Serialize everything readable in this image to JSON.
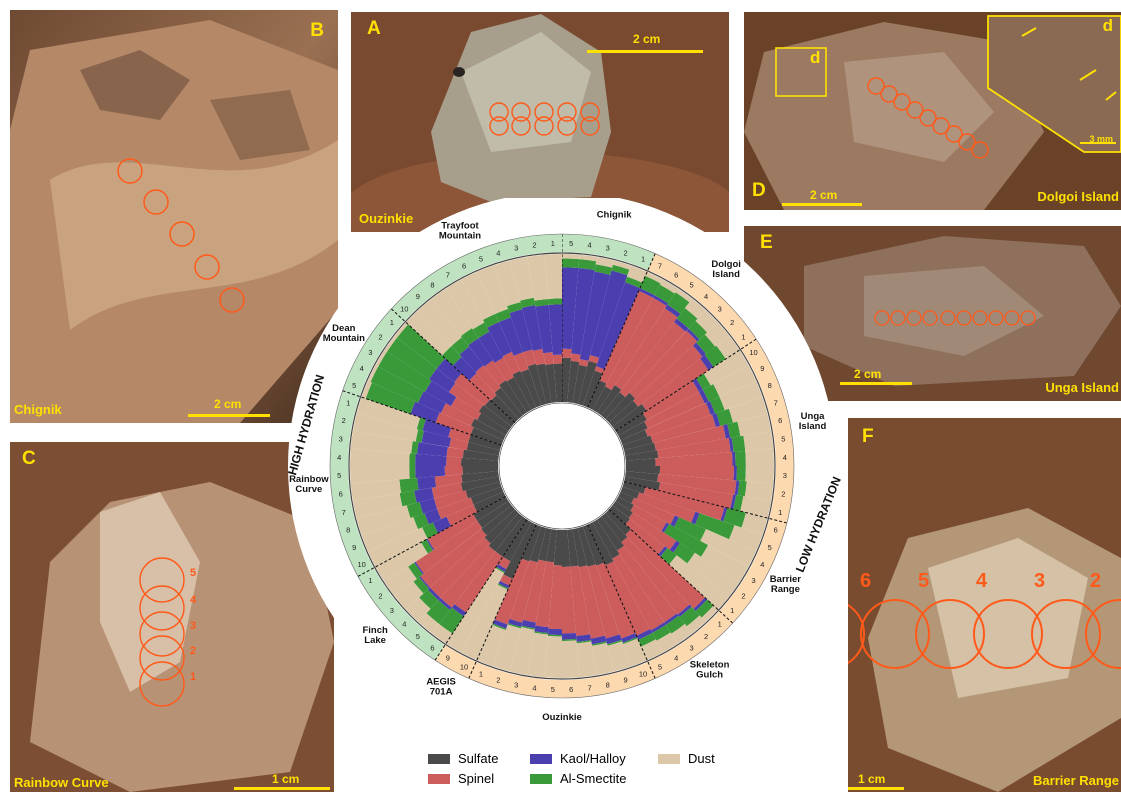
{
  "panels": {
    "A": {
      "letter": "A",
      "name": "Ouzinkie",
      "scale": "2 cm"
    },
    "B": {
      "letter": "B",
      "name": "Chignik",
      "scale": "2 cm"
    },
    "C": {
      "letter": "C",
      "name": "Rainbow Curve",
      "scale": "1 cm",
      "spots": [
        "5",
        "4",
        "3",
        "2",
        "1"
      ]
    },
    "D": {
      "letter": "D",
      "name": "Dolgoi Island",
      "scale": "2 cm",
      "inset_letter": "d",
      "inset_scale": "3 mm"
    },
    "E": {
      "letter": "E",
      "name": "Unga Island",
      "scale": "2 cm"
    },
    "F": {
      "letter": "F",
      "name": "Barrier Range",
      "scale": "1 cm",
      "spots": [
        "6",
        "5",
        "4",
        "3",
        "2"
      ]
    }
  },
  "colors": {
    "Sulfate": "#4a4a4a",
    "Spinel": "#cd5c5c",
    "Kaol/Halloy": "#4b3fb0",
    "Al-Smectite": "#3a9a3a",
    "Dust": "#dcc8a8",
    "high_band": "#bfe3c1",
    "low_band": "#fdd9b0"
  },
  "legend": [
    {
      "label": "Sulfate",
      "color": "#4a4a4a"
    },
    {
      "label": "Kaol/Halloy",
      "color": "#4b3fb0"
    },
    {
      "label": "Dust",
      "color": "#dcc8a8"
    },
    {
      "label": "Spinel",
      "color": "#cd5c5c"
    },
    {
      "label": "Al-Smectite",
      "color": "#3a9a3a"
    }
  ],
  "chart_data": {
    "type": "stacked radial bar",
    "components": [
      "Sulfate",
      "Spinel",
      "Kaol/Halloy",
      "Al-Smectite",
      "Dust"
    ],
    "band_labels": {
      "high": "HIGH  HYDRATION",
      "low": "LOW  HYDRATION"
    },
    "targets": [
      {
        "name": "Chignik",
        "hydration": "high",
        "spots": [
          {
            "label": "5",
            "Sulfate": 0.3,
            "Spinel": 0.06,
            "Kaol/Halloy": 0.55,
            "Al-Smectite": 0.06,
            "Dust": 0.03
          },
          {
            "label": "4",
            "Sulfate": 0.28,
            "Spinel": 0.05,
            "Kaol/Halloy": 0.58,
            "Al-Smectite": 0.06,
            "Dust": 0.03
          },
          {
            "label": "3",
            "Sulfate": 0.26,
            "Spinel": 0.04,
            "Kaol/Halloy": 0.6,
            "Al-Smectite": 0.05,
            "Dust": 0.05
          },
          {
            "label": "2",
            "Sulfate": 0.3,
            "Spinel": 0.04,
            "Kaol/Halloy": 0.59,
            "Al-Smectite": 0.04,
            "Dust": 0.03
          },
          {
            "label": "1",
            "Sulfate": 0.25,
            "Spinel": 0.03,
            "Kaol/Halloy": 0.6,
            "Al-Smectite": 0.04,
            "Dust": 0.08
          }
        ]
      },
      {
        "name": "Dolgoi Island",
        "hydration": "low",
        "spots": [
          {
            "label": "7",
            "Sulfate": 0.2,
            "Spinel": 0.66,
            "Kaol/Halloy": 0.02,
            "Al-Smectite": 0.09,
            "Dust": 0.03
          },
          {
            "label": "6",
            "Sulfate": 0.18,
            "Spinel": 0.68,
            "Kaol/Halloy": 0.02,
            "Al-Smectite": 0.08,
            "Dust": 0.04
          },
          {
            "label": "5",
            "Sulfate": 0.22,
            "Spinel": 0.62,
            "Kaol/Halloy": 0.03,
            "Al-Smectite": 0.1,
            "Dust": 0.03
          },
          {
            "label": "4",
            "Sulfate": 0.2,
            "Spinel": 0.6,
            "Kaol/Halloy": 0.03,
            "Al-Smectite": 0.09,
            "Dust": 0.08
          },
          {
            "label": "3",
            "Sulfate": 0.24,
            "Spinel": 0.57,
            "Kaol/Halloy": 0.02,
            "Al-Smectite": 0.07,
            "Dust": 0.1
          },
          {
            "label": "2",
            "Sulfate": 0.22,
            "Spinel": 0.55,
            "Kaol/Halloy": 0.03,
            "Al-Smectite": 0.08,
            "Dust": 0.12
          },
          {
            "label": "1",
            "Sulfate": 0.25,
            "Spinel": 0.5,
            "Kaol/Halloy": 0.04,
            "Al-Smectite": 0.1,
            "Dust": 0.11
          }
        ]
      },
      {
        "name": "Unga Island",
        "hydration": "low",
        "spots": [
          {
            "label": "10",
            "Sulfate": 0.22,
            "Spinel": 0.4,
            "Kaol/Halloy": 0.03,
            "Al-Smectite": 0.06,
            "Dust": 0.29
          },
          {
            "label": "9",
            "Sulfate": 0.2,
            "Spinel": 0.42,
            "Kaol/Halloy": 0.03,
            "Al-Smectite": 0.08,
            "Dust": 0.27
          },
          {
            "label": "8",
            "Sulfate": 0.18,
            "Spinel": 0.45,
            "Kaol/Halloy": 0.03,
            "Al-Smectite": 0.07,
            "Dust": 0.27
          },
          {
            "label": "7",
            "Sulfate": 0.2,
            "Spinel": 0.44,
            "Kaol/Halloy": 0.03,
            "Al-Smectite": 0.09,
            "Dust": 0.24
          },
          {
            "label": "6",
            "Sulfate": 0.21,
            "Spinel": 0.48,
            "Kaol/Halloy": 0.03,
            "Al-Smectite": 0.07,
            "Dust": 0.21
          },
          {
            "label": "5",
            "Sulfate": 0.22,
            "Spinel": 0.49,
            "Kaol/Halloy": 0.02,
            "Al-Smectite": 0.08,
            "Dust": 0.19
          },
          {
            "label": "4",
            "Sulfate": 0.2,
            "Spinel": 0.52,
            "Kaol/Halloy": 0.02,
            "Al-Smectite": 0.07,
            "Dust": 0.19
          },
          {
            "label": "3",
            "Sulfate": 0.23,
            "Spinel": 0.5,
            "Kaol/Halloy": 0.02,
            "Al-Smectite": 0.06,
            "Dust": 0.19
          },
          {
            "label": "2",
            "Sulfate": 0.22,
            "Spinel": 0.53,
            "Kaol/Halloy": 0.02,
            "Al-Smectite": 0.05,
            "Dust": 0.18
          },
          {
            "label": "1",
            "Sulfate": 0.24,
            "Spinel": 0.5,
            "Kaol/Halloy": 0.02,
            "Al-Smectite": 0.05,
            "Dust": 0.19
          }
        ]
      },
      {
        "name": "Barrier Range",
        "hydration": "low",
        "spots": [
          {
            "label": "6",
            "Sulfate": 0.15,
            "Spinel": 0.55,
            "Kaol/Halloy": 0.02,
            "Al-Smectite": 0.13,
            "Dust": 0.15
          },
          {
            "label": "5",
            "Sulfate": 0.12,
            "Spinel": 0.4,
            "Kaol/Halloy": 0.03,
            "Al-Smectite": 0.25,
            "Dust": 0.2
          },
          {
            "label": "4",
            "Sulfate": 0.1,
            "Spinel": 0.3,
            "Kaol/Halloy": 0.03,
            "Al-Smectite": 0.2,
            "Dust": 0.37
          },
          {
            "label": "3",
            "Sulfate": 0.12,
            "Spinel": 0.25,
            "Kaol/Halloy": 0.02,
            "Al-Smectite": 0.3,
            "Dust": 0.31
          },
          {
            "label": "2",
            "Sulfate": 0.14,
            "Spinel": 0.35,
            "Kaol/Halloy": 0.03,
            "Al-Smectite": 0.12,
            "Dust": 0.36
          },
          {
            "label": "1",
            "Sulfate": 0.15,
            "Spinel": 0.3,
            "Kaol/Halloy": 0.02,
            "Al-Smectite": 0.08,
            "Dust": 0.45
          }
        ]
      },
      {
        "name": "Skeleton Gulch",
        "hydration": "low",
        "spots": [
          {
            "label": "1",
            "Sulfate": 0.2,
            "Spinel": 0.68,
            "Kaol/Halloy": 0.02,
            "Al-Smectite": 0.06,
            "Dust": 0.04
          },
          {
            "label": "2",
            "Sulfate": 0.22,
            "Spinel": 0.62,
            "Kaol/Halloy": 0.02,
            "Al-Smectite": 0.08,
            "Dust": 0.06
          },
          {
            "label": "3",
            "Sulfate": 0.25,
            "Spinel": 0.58,
            "Kaol/Halloy": 0.02,
            "Al-Smectite": 0.07,
            "Dust": 0.08
          },
          {
            "label": "4",
            "Sulfate": 0.28,
            "Spinel": 0.55,
            "Kaol/Halloy": 0.02,
            "Al-Smectite": 0.06,
            "Dust": 0.09
          },
          {
            "label": "5",
            "Sulfate": 0.3,
            "Spinel": 0.52,
            "Kaol/Halloy": 0.03,
            "Al-Smectite": 0.05,
            "Dust": 0.1
          }
        ]
      },
      {
        "name": "Ouzinkie",
        "hydration": "low",
        "spots": [
          {
            "label": "10",
            "Sulfate": 0.28,
            "Spinel": 0.52,
            "Kaol/Halloy": 0.03,
            "Al-Smectite": 0.01,
            "Dust": 0.16
          },
          {
            "label": "9",
            "Sulfate": 0.27,
            "Spinel": 0.5,
            "Kaol/Halloy": 0.04,
            "Al-Smectite": 0.01,
            "Dust": 0.18
          },
          {
            "label": "8",
            "Sulfate": 0.26,
            "Spinel": 0.49,
            "Kaol/Halloy": 0.04,
            "Al-Smectite": 0.01,
            "Dust": 0.2
          },
          {
            "label": "7",
            "Sulfate": 0.25,
            "Spinel": 0.47,
            "Kaol/Halloy": 0.04,
            "Al-Smectite": 0.01,
            "Dust": 0.23
          },
          {
            "label": "6",
            "Sulfate": 0.25,
            "Spinel": 0.45,
            "Kaol/Halloy": 0.04,
            "Al-Smectite": 0.01,
            "Dust": 0.25
          },
          {
            "label": "5",
            "Sulfate": 0.24,
            "Spinel": 0.43,
            "Kaol/Halloy": 0.04,
            "Al-Smectite": 0.01,
            "Dust": 0.28
          },
          {
            "label": "4",
            "Sulfate": 0.22,
            "Spinel": 0.44,
            "Kaol/Halloy": 0.04,
            "Al-Smectite": 0.01,
            "Dust": 0.29
          },
          {
            "label": "3",
            "Sulfate": 0.22,
            "Spinel": 0.42,
            "Kaol/Halloy": 0.04,
            "Al-Smectite": 0.01,
            "Dust": 0.31
          },
          {
            "label": "2",
            "Sulfate": 0.24,
            "Spinel": 0.42,
            "Kaol/Halloy": 0.03,
            "Al-Smectite": 0.01,
            "Dust": 0.3
          },
          {
            "label": "1",
            "Sulfate": 0.25,
            "Spinel": 0.45,
            "Kaol/Halloy": 0.03,
            "Al-Smectite": 0.01,
            "Dust": 0.26
          }
        ]
      },
      {
        "name": "AEGIS 701A",
        "hydration": "low",
        "spots": [
          {
            "label": "10",
            "Sulfate": 0.4,
            "Spinel": 0.05,
            "Kaol/Halloy": 0.02,
            "Al-Smectite": 0.01,
            "Dust": 0.52
          },
          {
            "label": "9",
            "Sulfate": 0.3,
            "Spinel": 0.06,
            "Kaol/Halloy": 0.02,
            "Al-Smectite": 0.01,
            "Dust": 0.61
          }
        ]
      },
      {
        "name": "Finch Lake",
        "hydration": "high",
        "spots": [
          {
            "label": "6",
            "Sulfate": 0.3,
            "Spinel": 0.45,
            "Kaol/Halloy": 0.03,
            "Al-Smectite": 0.14,
            "Dust": 0.08
          },
          {
            "label": "5",
            "Sulfate": 0.3,
            "Spinel": 0.48,
            "Kaol/Halloy": 0.02,
            "Al-Smectite": 0.12,
            "Dust": 0.08
          },
          {
            "label": "4",
            "Sulfate": 0.28,
            "Spinel": 0.5,
            "Kaol/Halloy": 0.02,
            "Al-Smectite": 0.08,
            "Dust": 0.12
          },
          {
            "label": "3",
            "Sulfate": 0.26,
            "Spinel": 0.52,
            "Kaol/Halloy": 0.01,
            "Al-Smectite": 0.05,
            "Dust": 0.16
          },
          {
            "label": "2",
            "Sulfate": 0.25,
            "Spinel": 0.5,
            "Kaol/Halloy": 0.01,
            "Al-Smectite": 0.05,
            "Dust": 0.19
          },
          {
            "label": "1",
            "Sulfate": 0.25,
            "Spinel": 0.35,
            "Kaol/Halloy": 0.01,
            "Al-Smectite": 0.04,
            "Dust": 0.35
          }
        ]
      },
      {
        "name": "Rainbow Curve",
        "hydration": "high",
        "spots": [
          {
            "label": "10",
            "Sulfate": 0.22,
            "Spinel": 0.2,
            "Kaol/Halloy": 0.1,
            "Al-Smectite": 0.08,
            "Dust": 0.4
          },
          {
            "label": "9",
            "Sulfate": 0.22,
            "Spinel": 0.24,
            "Kaol/Halloy": 0.09,
            "Al-Smectite": 0.08,
            "Dust": 0.37
          },
          {
            "label": "8",
            "Sulfate": 0.24,
            "Spinel": 0.22,
            "Kaol/Halloy": 0.1,
            "Al-Smectite": 0.09,
            "Dust": 0.35
          },
          {
            "label": "7",
            "Sulfate": 0.26,
            "Spinel": 0.2,
            "Kaol/Halloy": 0.12,
            "Al-Smectite": 0.1,
            "Dust": 0.32
          },
          {
            "label": "6",
            "Sulfate": 0.25,
            "Spinel": 0.18,
            "Kaol/Halloy": 0.12,
            "Al-Smectite": 0.12,
            "Dust": 0.33
          },
          {
            "label": "5",
            "Sulfate": 0.24,
            "Spinel": 0.12,
            "Kaol/Halloy": 0.2,
            "Al-Smectite": 0.04,
            "Dust": 0.4
          },
          {
            "label": "4",
            "Sulfate": 0.25,
            "Spinel": 0.1,
            "Kaol/Halloy": 0.21,
            "Al-Smectite": 0.04,
            "Dust": 0.4
          },
          {
            "label": "3",
            "Sulfate": 0.24,
            "Spinel": 0.11,
            "Kaol/Halloy": 0.2,
            "Al-Smectite": 0.04,
            "Dust": 0.41
          },
          {
            "label": "2",
            "Sulfate": 0.22,
            "Spinel": 0.12,
            "Kaol/Halloy": 0.19,
            "Al-Smectite": 0.04,
            "Dust": 0.43
          },
          {
            "label": "1",
            "Sulfate": 0.22,
            "Spinel": 0.14,
            "Kaol/Halloy": 0.18,
            "Al-Smectite": 0.04,
            "Dust": 0.42
          }
        ]
      },
      {
        "name": "Dean Mountain",
        "hydration": "high",
        "spots": [
          {
            "label": "5",
            "Sulfate": 0.22,
            "Spinel": 0.25,
            "Kaol/Halloy": 0.18,
            "Al-Smectite": 0.32,
            "Dust": 0.03
          },
          {
            "label": "4",
            "Sulfate": 0.24,
            "Spinel": 0.22,
            "Kaol/Halloy": 0.17,
            "Al-Smectite": 0.35,
            "Dust": 0.02
          },
          {
            "label": "3",
            "Sulfate": 0.22,
            "Spinel": 0.2,
            "Kaol/Halloy": 0.2,
            "Al-Smectite": 0.36,
            "Dust": 0.02
          },
          {
            "label": "2",
            "Sulfate": 0.24,
            "Spinel": 0.24,
            "Kaol/Halloy": 0.16,
            "Al-Smectite": 0.34,
            "Dust": 0.02
          },
          {
            "label": "1",
            "Sulfate": 0.23,
            "Spinel": 0.26,
            "Kaol/Halloy": 0.15,
            "Al-Smectite": 0.34,
            "Dust": 0.02
          }
        ]
      },
      {
        "name": "Trayfoot Mountain",
        "hydration": "high",
        "spots": [
          {
            "label": "10",
            "Sulfate": 0.22,
            "Spinel": 0.2,
            "Kaol/Halloy": 0.15,
            "Al-Smectite": 0.1,
            "Dust": 0.33
          },
          {
            "label": "9",
            "Sulfate": 0.24,
            "Spinel": 0.19,
            "Kaol/Halloy": 0.16,
            "Al-Smectite": 0.08,
            "Dust": 0.33
          },
          {
            "label": "8",
            "Sulfate": 0.26,
            "Spinel": 0.16,
            "Kaol/Halloy": 0.18,
            "Al-Smectite": 0.08,
            "Dust": 0.32
          },
          {
            "label": "7",
            "Sulfate": 0.25,
            "Spinel": 0.15,
            "Kaol/Halloy": 0.2,
            "Al-Smectite": 0.07,
            "Dust": 0.33
          },
          {
            "label": "6",
            "Sulfate": 0.27,
            "Spinel": 0.14,
            "Kaol/Halloy": 0.22,
            "Al-Smectite": 0.06,
            "Dust": 0.31
          },
          {
            "label": "5",
            "Sulfate": 0.26,
            "Spinel": 0.12,
            "Kaol/Halloy": 0.25,
            "Al-Smectite": 0.06,
            "Dust": 0.31
          },
          {
            "label": "4",
            "Sulfate": 0.28,
            "Spinel": 0.1,
            "Kaol/Halloy": 0.28,
            "Al-Smectite": 0.05,
            "Dust": 0.29
          },
          {
            "label": "3",
            "Sulfate": 0.27,
            "Spinel": 0.1,
            "Kaol/Halloy": 0.3,
            "Al-Smectite": 0.05,
            "Dust": 0.28
          },
          {
            "label": "2",
            "Sulfate": 0.26,
            "Spinel": 0.08,
            "Kaol/Halloy": 0.32,
            "Al-Smectite": 0.04,
            "Dust": 0.3
          },
          {
            "label": "1",
            "Sulfate": 0.26,
            "Spinel": 0.06,
            "Kaol/Halloy": 0.34,
            "Al-Smectite": 0.04,
            "Dust": 0.3
          }
        ]
      }
    ]
  }
}
